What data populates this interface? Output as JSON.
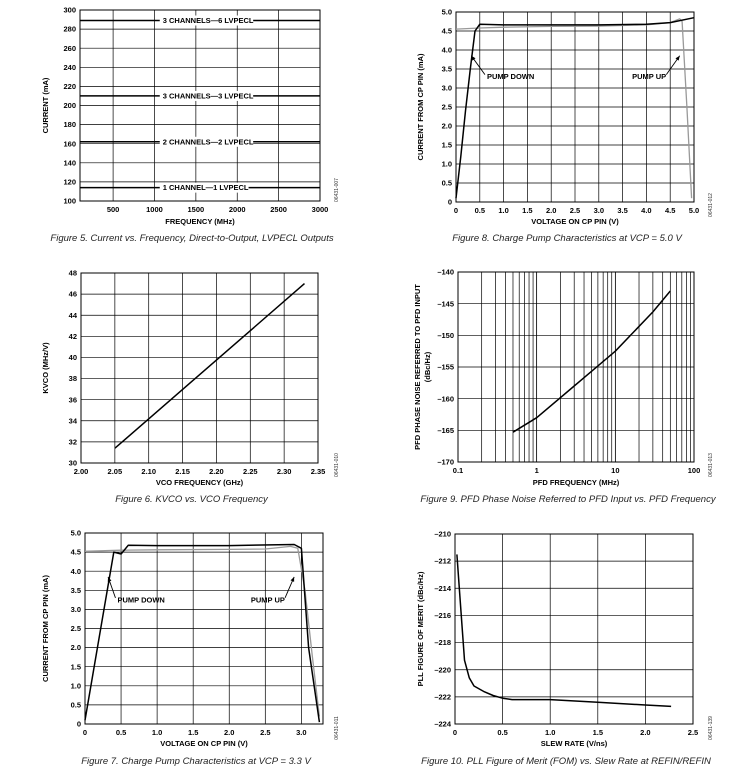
{
  "chart_data": [
    {
      "id": "fig5",
      "type": "line",
      "caption": "Figure 5. Current vs. Frequency, Direct-to-Output, LVPECL Outputs",
      "code": "06431-007",
      "xlabel": "FREQUENCY (MHz)",
      "ylabel": "CURRENT (mA)",
      "xlim": [
        100,
        3000
      ],
      "ylim": [
        100,
        300
      ],
      "xscale": "linear",
      "xticks": [
        500,
        1000,
        1500,
        2000,
        2500,
        3000
      ],
      "xticklabels": [
        "500",
        "1000",
        "1500",
        "2000",
        "2500",
        "3000"
      ],
      "yticks": [
        100,
        120,
        140,
        160,
        180,
        200,
        220,
        240,
        260,
        280,
        300
      ],
      "yticklabels": [
        "100",
        "120",
        "140",
        "160",
        "180",
        "200",
        "220",
        "240",
        "260",
        "280",
        "300"
      ],
      "series": [
        {
          "name": "3 CHANNELS—6 LVPECL",
          "color": "#000000",
          "x": [
            100,
            3000
          ],
          "y": [
            289,
            289
          ]
        },
        {
          "name": "3 CHANNELS—3 LVPECL",
          "color": "#000000",
          "x": [
            100,
            3000
          ],
          "y": [
            210,
            210
          ]
        },
        {
          "name": "2 CHANNELS—2 LVPECL",
          "color": "#000000",
          "x": [
            100,
            3000
          ],
          "y": [
            162,
            162
          ]
        },
        {
          "name": "1 CHANNEL—1 LVPECL",
          "color": "#000000",
          "x": [
            100,
            3000
          ],
          "y": [
            114,
            114
          ]
        }
      ],
      "annotations": [
        {
          "text": "3 CHANNELS—6 LVPECL",
          "x": 1100,
          "y": 289
        },
        {
          "text": "3 CHANNELS—3 LVPECL",
          "x": 1100,
          "y": 210
        },
        {
          "text": "2 CHANNELS—2 LVPECL",
          "x": 1100,
          "y": 162
        },
        {
          "text": "1 CHANNEL—1 LVPECL",
          "x": 1100,
          "y": 114
        }
      ]
    },
    {
      "id": "fig8",
      "type": "line",
      "caption": "Figure 8. Charge Pump Characteristics at VCP = 5.0 V",
      "code": "06431-012",
      "xlabel": "VOLTAGE ON CP PIN (V)",
      "ylabel": "CURRENT FROM CP PIN (mA)",
      "xlim": [
        0,
        5.0
      ],
      "ylim": [
        0,
        5.0
      ],
      "xscale": "linear",
      "xticks": [
        0,
        0.5,
        1.0,
        1.5,
        2.0,
        2.5,
        3.0,
        3.5,
        4.0,
        4.5,
        5.0
      ],
      "xticklabels": [
        "0",
        "0.5",
        "1.0",
        "1.5",
        "2.0",
        "2.5",
        "3.0",
        "3.5",
        "4.0",
        "4.5",
        "5.0"
      ],
      "yticks": [
        0,
        0.5,
        1.0,
        1.5,
        2.0,
        2.5,
        3.0,
        3.5,
        4.0,
        4.5,
        5.0
      ],
      "yticklabels": [
        "0",
        "0.5",
        "1.0",
        "1.5",
        "2.0",
        "2.5",
        "3.0",
        "3.5",
        "4.0",
        "4.5",
        "5.0"
      ],
      "series": [
        {
          "name": "PUMP UP",
          "color": "#999999",
          "x": [
            0,
            0.5,
            1.0,
            2.0,
            3.0,
            4.0,
            4.5,
            4.7,
            4.75,
            4.85,
            4.95
          ],
          "y": [
            4.55,
            4.58,
            4.6,
            4.62,
            4.63,
            4.66,
            4.72,
            4.82,
            4.75,
            2.5,
            0.1
          ]
        },
        {
          "name": "PUMP DOWN",
          "color": "#000000",
          "x": [
            0,
            0.1,
            0.2,
            0.3,
            0.4,
            0.5,
            1.0,
            2.0,
            3.0,
            4.0,
            4.5,
            5.0
          ],
          "y": [
            0.1,
            1.2,
            2.4,
            3.5,
            4.5,
            4.68,
            4.66,
            4.66,
            4.66,
            4.68,
            4.72,
            4.85
          ]
        }
      ],
      "annotations": [
        {
          "text": "PUMP DOWN",
          "x": 0.65,
          "y": 3.3,
          "arrow_to": [
            0.32,
            3.85
          ]
        },
        {
          "text": "PUMP UP",
          "x": 3.7,
          "y": 3.3,
          "arrow_to": [
            4.7,
            3.85
          ]
        }
      ]
    },
    {
      "id": "fig6",
      "type": "line",
      "caption": "Figure 6. KVCO vs. VCO Frequency",
      "code": "06431-010",
      "xlabel": "VCO FREQUENCY (GHz)",
      "ylabel": "KVCO (MHz/V)",
      "xlim": [
        2.0,
        2.35
      ],
      "ylim": [
        30,
        48
      ],
      "xscale": "linear",
      "xticks": [
        2.0,
        2.05,
        2.1,
        2.15,
        2.2,
        2.25,
        2.3,
        2.35
      ],
      "xticklabels": [
        "2.00",
        "2.05",
        "2.10",
        "2.15",
        "2.20",
        "2.25",
        "2.30",
        "2.35"
      ],
      "yticks": [
        30,
        32,
        34,
        36,
        38,
        40,
        42,
        44,
        46,
        48
      ],
      "yticklabels": [
        "30",
        "32",
        "34",
        "36",
        "38",
        "40",
        "42",
        "44",
        "46",
        "48"
      ],
      "series": [
        {
          "name": "KVCO",
          "color": "#000000",
          "x": [
            2.05,
            2.33
          ],
          "y": [
            31.4,
            47.0
          ]
        }
      ]
    },
    {
      "id": "fig9",
      "type": "line",
      "caption": "Figure 9. PFD Phase Noise Referred to PFD Input vs. PFD Frequency",
      "code": "06431-013",
      "xlabel": "PFD FREQUENCY (MHz)",
      "ylabel": "PFD PHASE NOISE REFERRED TO PFD INPUT (dBc/Hz)",
      "xlim": [
        0.1,
        100
      ],
      "ylim": [
        -170,
        -140
      ],
      "xscale": "log",
      "xticks": [
        0.1,
        1,
        10,
        100
      ],
      "xticklabels": [
        "0.1",
        "1",
        "10",
        "100"
      ],
      "yticks": [
        -170,
        -165,
        -160,
        -155,
        -150,
        -145,
        -140
      ],
      "yticklabels": [
        "–170",
        "–165",
        "–160",
        "–155",
        "–150",
        "–145",
        "–140"
      ],
      "series": [
        {
          "name": "PFD phase noise",
          "color": "#000000",
          "x": [
            0.5,
            1,
            3,
            10,
            30,
            50
          ],
          "y": [
            -165.3,
            -163.0,
            -158.0,
            -152.5,
            -146.3,
            -143.0
          ]
        }
      ]
    },
    {
      "id": "fig7",
      "type": "line",
      "caption": "Figure 7. Charge Pump Characteristics at VCP = 3.3 V",
      "code": "06431-011",
      "xlabel": "VOLTAGE ON CP PIN (V)",
      "ylabel": "CURRENT FROM CP PIN (mA)",
      "xlim": [
        0,
        3.3
      ],
      "ylim": [
        0,
        5.0
      ],
      "xscale": "linear",
      "xticks": [
        0,
        0.5,
        1.0,
        1.5,
        2.0,
        2.5,
        3.0
      ],
      "xticklabels": [
        "0",
        "0.5",
        "1.0",
        "1.5",
        "2.0",
        "2.5",
        "3.0"
      ],
      "yticks": [
        0,
        0.5,
        1.0,
        1.5,
        2.0,
        2.5,
        3.0,
        3.5,
        4.0,
        4.5,
        5.0
      ],
      "yticklabels": [
        "0",
        "0.5",
        "1.0",
        "1.5",
        "2.0",
        "2.5",
        "3.0",
        "3.5",
        "4.0",
        "4.5",
        "5.0"
      ],
      "series": [
        {
          "name": "PUMP UP",
          "color": "#999999",
          "x": [
            0,
            0.5,
            1.0,
            2.0,
            2.5,
            2.85,
            2.95,
            3.05,
            3.15,
            3.25
          ],
          "y": [
            4.52,
            4.55,
            4.56,
            4.57,
            4.58,
            4.65,
            4.6,
            3.5,
            1.8,
            0.2
          ]
        },
        {
          "name": "PUMP DOWN",
          "color": "#000000",
          "x": [
            0,
            0.1,
            0.2,
            0.3,
            0.4,
            0.5,
            0.6,
            1.0,
            2.0,
            2.9,
            3.0,
            3.1,
            3.25
          ],
          "y": [
            0.1,
            1.2,
            2.3,
            3.4,
            4.5,
            4.45,
            4.68,
            4.67,
            4.67,
            4.7,
            4.6,
            2.0,
            0.05
          ]
        }
      ],
      "annotations": [
        {
          "text": "PUMP DOWN",
          "x": 0.45,
          "y": 3.25,
          "arrow_to": [
            0.32,
            3.85
          ]
        },
        {
          "text": "PUMP UP",
          "x": 2.3,
          "y": 3.25,
          "arrow_to": [
            2.9,
            3.85
          ]
        }
      ]
    },
    {
      "id": "fig10",
      "type": "line",
      "caption": "Figure 10. PLL Figure of Merit (FOM) vs. Slew Rate at REFIN/REFIN",
      "code": "06431-139",
      "xlabel": "SLEW RATE (V/ns)",
      "ylabel": "PLL FIGURE OF MERIT (dBc/Hz)",
      "xlim": [
        0,
        2.5
      ],
      "ylim": [
        -224,
        -210
      ],
      "xscale": "linear",
      "xticks": [
        0,
        0.5,
        1.0,
        1.5,
        2.0,
        2.5
      ],
      "xticklabels": [
        "0",
        "0.5",
        "1.0",
        "1.5",
        "2.0",
        "2.5"
      ],
      "yticks": [
        -224,
        -222,
        -220,
        -218,
        -216,
        -214,
        -212,
        -210
      ],
      "yticklabels": [
        "–224",
        "–222",
        "–220",
        "–218",
        "–216",
        "–214",
        "–212",
        "–210"
      ],
      "series": [
        {
          "name": "FOM",
          "color": "#000000",
          "x": [
            0.02,
            0.05,
            0.1,
            0.15,
            0.2,
            0.3,
            0.4,
            0.5,
            0.6,
            0.8,
            1.0,
            1.5,
            2.0,
            2.27
          ],
          "y": [
            -211.5,
            -214.5,
            -219.3,
            -220.6,
            -221.2,
            -221.6,
            -221.9,
            -222.1,
            -222.2,
            -222.2,
            -222.2,
            -222.4,
            -222.6,
            -222.7
          ]
        }
      ]
    }
  ]
}
